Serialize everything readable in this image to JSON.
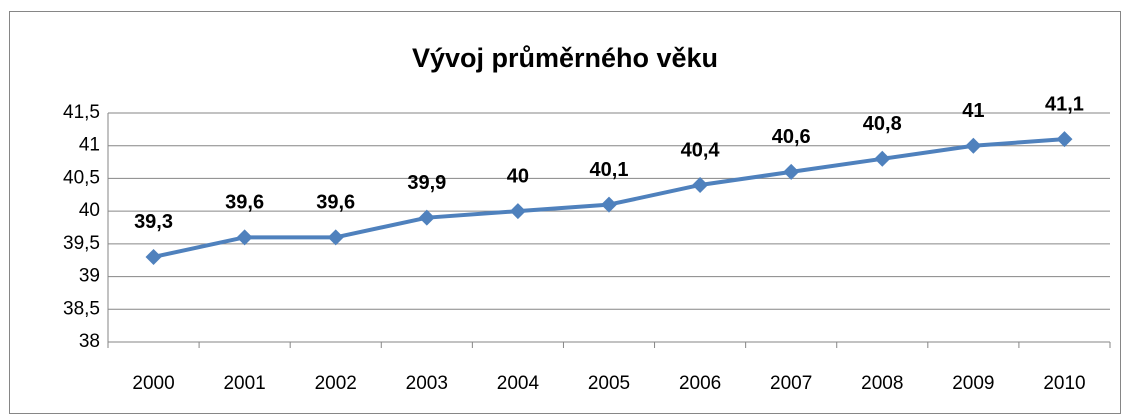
{
  "chart_data": {
    "type": "line",
    "title": "Vývoj průměrného věku",
    "categories": [
      "2000",
      "2001",
      "2002",
      "2003",
      "2004",
      "2005",
      "2006",
      "2007",
      "2008",
      "2009",
      "2010"
    ],
    "series": [
      {
        "color": "#4f81bd",
        "values": [
          39.3,
          39.6,
          39.6,
          39.9,
          40,
          40.1,
          40.4,
          40.6,
          40.8,
          41,
          41.1
        ],
        "value_labels": [
          "39,3",
          "39,6",
          "39,6",
          "39,9",
          "40",
          "40,1",
          "40,4",
          "40,6",
          "40,8",
          "41",
          "41,1"
        ]
      }
    ],
    "ylim": [
      38,
      41.5
    ],
    "yticks": [
      38,
      {
        "value": 38.5,
        "label": "38,5"
      },
      39,
      {
        "value": 39.5,
        "label": "39,5"
      },
      40,
      {
        "value": 40.5,
        "label": "40,5"
      },
      41,
      {
        "value": 41.5,
        "label": "41,5"
      }
    ],
    "grid": true
  }
}
